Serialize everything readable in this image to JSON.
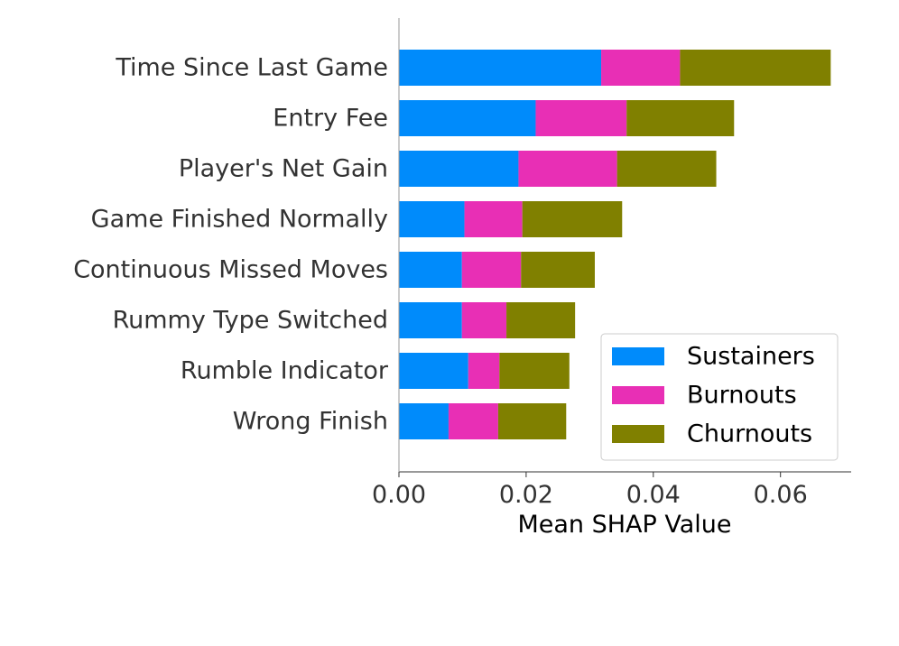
{
  "chart_data": {
    "type": "bar",
    "orientation": "horizontal",
    "stacked": true,
    "title": "",
    "xlabel": "Mean SHAP Value",
    "ylabel": "",
    "xlim": [
      0,
      0.071
    ],
    "xticks": [
      0.0,
      0.02,
      0.04,
      0.06
    ],
    "xtick_labels": [
      "0.00",
      "0.02",
      "0.04",
      "0.06"
    ],
    "grid": false,
    "legend_position": "lower-right",
    "categories": [
      "Time Since Last Game",
      "Entry Fee",
      "Player's Net Gain",
      "Game Finished Normally",
      "Continuous Missed Moves",
      "Rummy Type Switched",
      "Rumble Indicator",
      "Wrong Finish"
    ],
    "series": [
      {
        "name": "Sustainers",
        "color": "#008bfb",
        "values": [
          0.0318,
          0.0215,
          0.0188,
          0.0103,
          0.0099,
          0.0099,
          0.0109,
          0.0078
        ]
      },
      {
        "name": "Burnouts",
        "color": "#e82fb5",
        "values": [
          0.0124,
          0.0143,
          0.0155,
          0.0091,
          0.0093,
          0.007,
          0.0049,
          0.0078
        ]
      },
      {
        "name": "Churnouts",
        "color": "#808000",
        "values": [
          0.0237,
          0.0169,
          0.0156,
          0.0157,
          0.0116,
          0.0108,
          0.011,
          0.0107
        ]
      }
    ]
  }
}
